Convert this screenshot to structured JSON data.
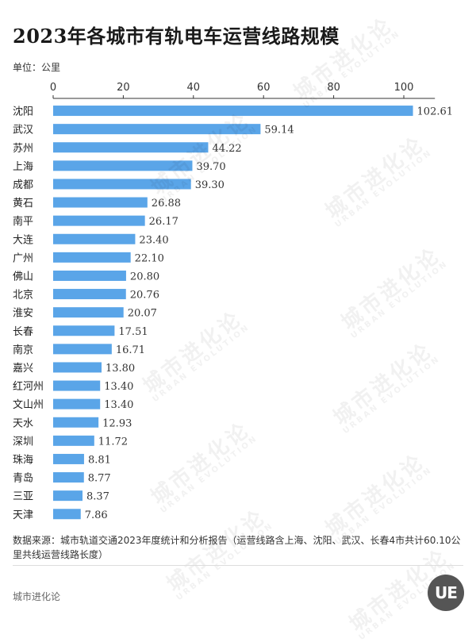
{
  "header": {
    "title": "2023年各城市有轨电车运营线路规模",
    "unit_label": "单位：公里"
  },
  "chart_data": {
    "type": "bar",
    "orientation": "horizontal",
    "title": "2023年各城市有轨电车运营线路规模",
    "xlabel": "",
    "ylabel": "",
    "xlim": [
      0,
      110
    ],
    "x_ticks": [
      0,
      20,
      40,
      60,
      80,
      100
    ],
    "axis_position": "top",
    "grid": false,
    "bar_color": "#5aa5e8",
    "categories": [
      "沈阳",
      "武汉",
      "苏州",
      "上海",
      "成都",
      "黄石",
      "南平",
      "大连",
      "广州",
      "佛山",
      "北京",
      "淮安",
      "长春",
      "南京",
      "嘉兴",
      "红河州",
      "文山州",
      "天水",
      "深圳",
      "珠海",
      "青岛",
      "三亚",
      "天津"
    ],
    "values": [
      102.61,
      59.14,
      44.22,
      39.7,
      39.3,
      26.88,
      26.17,
      23.4,
      22.1,
      20.8,
      20.76,
      20.07,
      17.51,
      16.71,
      13.8,
      13.4,
      13.4,
      12.93,
      11.72,
      8.81,
      8.77,
      8.37,
      7.86
    ],
    "value_labels": [
      "102.61",
      "59.14",
      "44.22",
      "39.70",
      "39.30",
      "26.88",
      "26.17",
      "23.40",
      "22.10",
      "20.80",
      "20.76",
      "20.07",
      "17.51",
      "16.71",
      "13.80",
      "13.40",
      "13.40",
      "12.93",
      "11.72",
      "8.81",
      "8.77",
      "8.37",
      "7.86"
    ]
  },
  "watermark": {
    "cn": "城市进化论",
    "en": "URBAN EVOLUTION"
  },
  "footer": {
    "source": "数据来源：城市轨道交通2023年度统计和分析报告（运营线路含上海、沈阳、武汉、长春4市共计60.10公里共线运营线路长度）",
    "brand": "城市进化论",
    "logo_text": "UE"
  }
}
